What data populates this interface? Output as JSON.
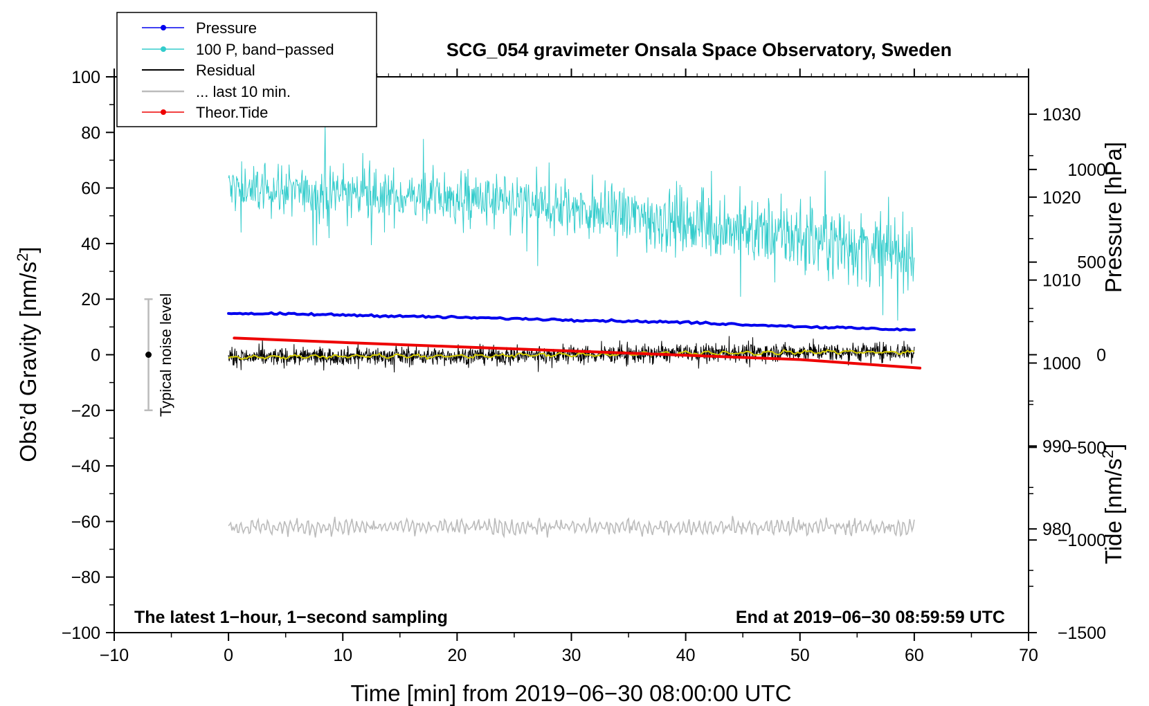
{
  "chart_data": {
    "type": "line",
    "title": "SCG_054 gravimeter Onsala Space Observatory, Sweden",
    "xlabel": "Time [min] from 2019−06−30 08:00:00 UTC",
    "ylabel_left": "Obs’d Gravity [nm/s",
    "ylabel_left_sup": "2",
    "ylabel_left_close": "]",
    "ylabel_pressure": "Pressure [hPa]",
    "ylabel_tide": "Tide [nm/s",
    "ylabel_tide_sup": "2",
    "ylabel_tide_close": "]",
    "xlim": [
      -10,
      70
    ],
    "ylim": [
      -100,
      100
    ],
    "pressure_lim": [
      967.5,
      1034.5
    ],
    "tide_lim": [
      -1500,
      1500
    ],
    "x_ticks": [
      -10,
      0,
      10,
      20,
      30,
      40,
      50,
      60,
      70
    ],
    "x_tick_labels": [
      "−10",
      "0",
      "10",
      "20",
      "30",
      "40",
      "50",
      "60",
      "70"
    ],
    "y_ticks": [
      -100,
      -80,
      -60,
      -40,
      -20,
      0,
      20,
      40,
      60,
      80,
      100
    ],
    "y_tick_labels": [
      "−100",
      "−80",
      "−60",
      "−40",
      "−20",
      "0",
      "20",
      "40",
      "60",
      "80",
      "100"
    ],
    "pressure_ticks": [
      980,
      990,
      1000,
      1010,
      1020,
      1030
    ],
    "pressure_tick_labels": [
      "980",
      "990",
      "1000",
      "1010",
      "1020",
      "1030"
    ],
    "tide_ticks": [
      -1500,
      -1000,
      -500,
      0,
      500,
      1000
    ],
    "tide_tick_labels": [
      "−1500",
      "−1000",
      "−500",
      "0",
      "500",
      "1000"
    ],
    "legend": [
      {
        "label": "Pressure",
        "color": "#0000ee",
        "marker": true
      },
      {
        "label": "100 P, band−passed",
        "color": "#33cccc",
        "marker": true
      },
      {
        "label": "Residual",
        "color": "#000000",
        "marker": false
      },
      {
        "label": "... last 10 min.",
        "color": "#bbbbbb",
        "marker": false
      },
      {
        "label": "Theor.Tide",
        "color": "#ee0000",
        "marker": true
      }
    ],
    "series": [
      {
        "name": "Pressure",
        "axis": "pressure",
        "color": "#0000ee",
        "x": [
          0,
          10,
          20,
          30,
          40,
          50,
          60
        ],
        "y": [
          1006.0,
          1005.8,
          1005.5,
          1005.2,
          1004.9,
          1004.4,
          1004.0
        ]
      },
      {
        "name": "100 P, band-passed",
        "axis": "left",
        "color": "#33cccc",
        "x": [
          0,
          10,
          20,
          30,
          40,
          50,
          60
        ],
        "y": [
          60,
          58,
          56,
          52,
          48,
          42,
          36
        ]
      },
      {
        "name": "Residual",
        "axis": "left",
        "color": "#000000",
        "x": [
          0,
          10,
          20,
          30,
          40,
          50,
          60
        ],
        "y": [
          -1,
          -0.5,
          -0.5,
          0,
          0.5,
          1,
          1
        ]
      },
      {
        "name": "... last 10 min.",
        "axis": "left",
        "color": "#bbbbbb",
        "x": [
          0,
          10,
          20,
          30,
          40,
          50,
          60
        ],
        "y": [
          -62,
          -62,
          -62,
          -62,
          -62,
          -62,
          -62
        ]
      },
      {
        "name": "Theor.Tide",
        "axis": "tide",
        "color": "#ee0000",
        "x": [
          0.5,
          10,
          20,
          30,
          40,
          50,
          60.5
        ],
        "y": [
          90,
          66,
          43,
          20,
          -3,
          -26,
          -72
        ]
      }
    ],
    "noise_bar": {
      "label": "Typical noise level",
      "x": -7,
      "center": 0,
      "low": -20,
      "high": 20
    },
    "annotation_left": "The latest 1−hour, 1−second sampling",
    "annotation_right": "End at 2019−06−30 08:59:59 UTC"
  }
}
